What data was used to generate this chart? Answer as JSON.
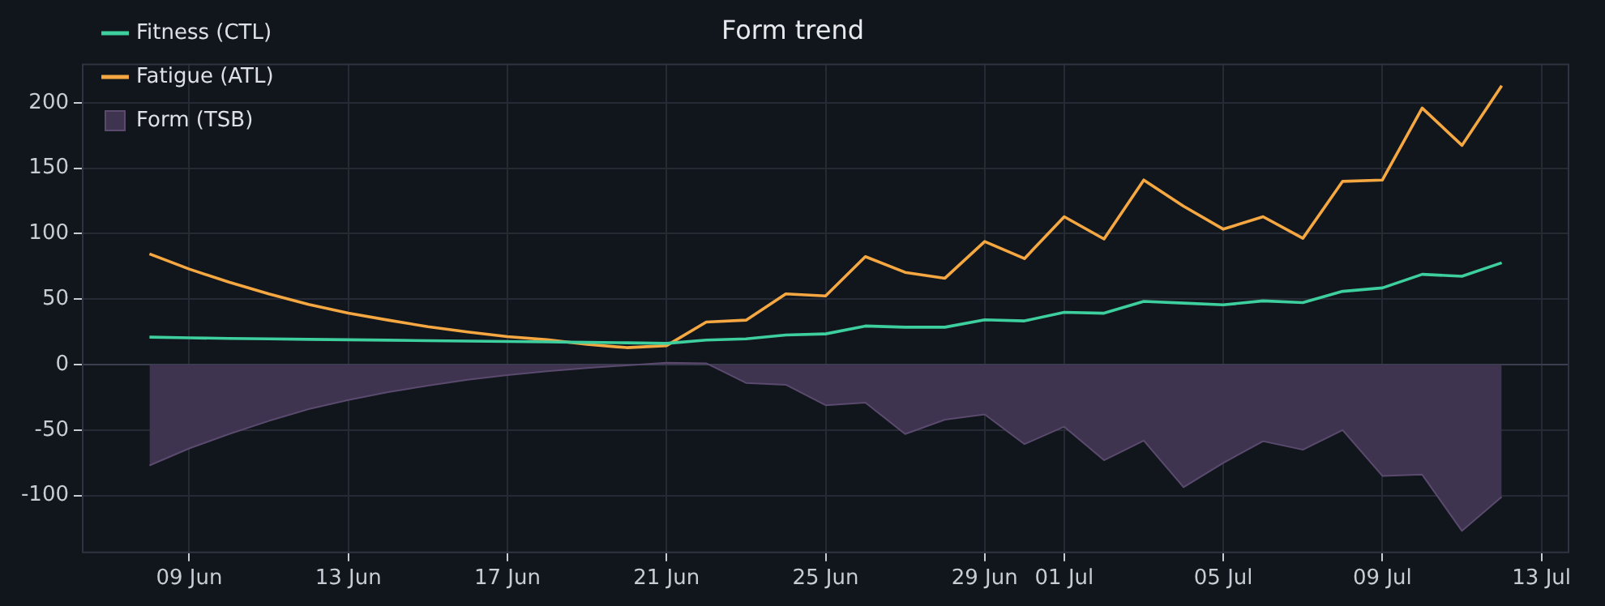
{
  "chart_data": {
    "type": "line",
    "title": "Form trend",
    "x": [
      "--06-08",
      "--06-09",
      "--06-10",
      "--06-11",
      "--06-12",
      "--06-13",
      "--06-14",
      "--06-15",
      "--06-16",
      "--06-17",
      "--06-18",
      "--06-19",
      "--06-20",
      "--06-21",
      "--06-22",
      "--06-23",
      "--06-24",
      "--06-25",
      "--06-26",
      "--06-27",
      "--06-28",
      "--06-29",
      "--06-30",
      "--07-01",
      "--07-02",
      "--07-03",
      "--07-04",
      "--07-05",
      "--07-06",
      "--07-07",
      "--07-08",
      "--07-09",
      "--07-10",
      "--07-11",
      "--07-12"
    ],
    "series": [
      {
        "name": "Fitness (CTL)",
        "color": "#3ecf9e",
        "values": [
          21,
          20.5,
          20,
          19.7,
          19.3,
          19,
          18.7,
          18.3,
          18,
          17.7,
          17.4,
          17,
          16.7,
          16.2,
          18.8,
          19.7,
          22.6,
          23.5,
          29.5,
          28.6,
          28.6,
          34.2,
          33.4,
          40,
          39.3,
          48.3,
          47,
          45.7,
          48.7,
          47.4,
          56,
          58.6,
          69,
          67.5,
          77.8
        ]
      },
      {
        "name": "Fatigue (ATL)",
        "color": "#f5a742",
        "values": [
          84.6,
          73,
          63,
          54,
          46,
          39.3,
          34,
          29,
          25,
          21.4,
          19,
          15.5,
          13,
          14.5,
          32.5,
          34,
          54,
          52.5,
          82.5,
          70.5,
          66,
          94,
          81,
          113,
          96,
          141,
          121,
          103.5,
          113,
          96.5,
          140,
          141,
          196,
          167.5,
          213
        ]
      },
      {
        "name": "Form (TSB)",
        "type": "area",
        "color": "#3f3450",
        "values": [
          -77,
          -64,
          -53,
          -43,
          -34,
          -27,
          -21,
          -16,
          -11.5,
          -8,
          -5,
          -2.5,
          -0.5,
          1.5,
          1,
          -14,
          -15.4,
          -31,
          -29,
          -53,
          -42,
          -38,
          -60.7,
          -47.4,
          -73,
          -58,
          -93.6,
          -75,
          -58.5,
          -65,
          -50,
          -85,
          -84,
          -127,
          -101
        ]
      }
    ],
    "xlim": [
      "--06-06T07:12",
      "--07-13T16:48"
    ],
    "xticks": [
      {
        "value": "--06-09",
        "label": "09 Jun"
      },
      {
        "value": "--06-13",
        "label": "13 Jun"
      },
      {
        "value": "--06-17",
        "label": "17 Jun"
      },
      {
        "value": "--06-21",
        "label": "21 Jun"
      },
      {
        "value": "--06-25",
        "label": "25 Jun"
      },
      {
        "value": "--06-29",
        "label": "29 Jun"
      },
      {
        "value": "--07-01",
        "label": "01 Jul"
      },
      {
        "value": "--07-05",
        "label": "05 Jul"
      },
      {
        "value": "--07-09",
        "label": "09 Jul"
      },
      {
        "value": "--07-13",
        "label": "13 Jul"
      }
    ],
    "ylim": [
      -144,
      230
    ],
    "yticks": [
      -100,
      -50,
      0,
      50,
      100,
      150,
      200
    ],
    "grid": true,
    "legend": "top left"
  }
}
